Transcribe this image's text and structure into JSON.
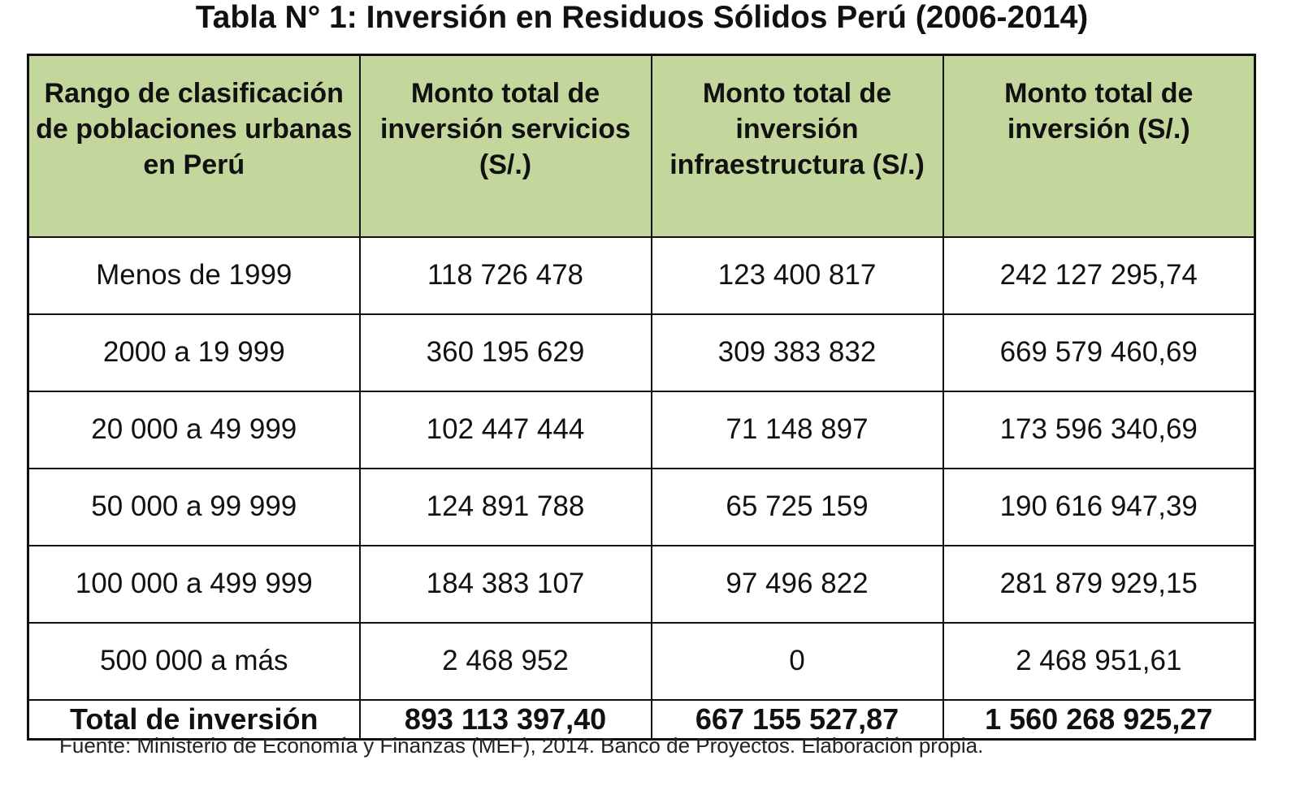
{
  "title": "Tabla N° 1: Inversión en Residuos Sólidos Perú (2006-2014)",
  "table": {
    "headers": [
      "Rango de clasificación de poblaciones urbanas en Perú",
      "Monto total de inversión servicios (S/.)",
      "Monto total de inversión infraestructura (S/.)",
      "Monto total de inversión (S/.)"
    ],
    "rows": [
      [
        "Menos de 1999",
        "118 726 478",
        "123 400 817",
        "242 127 295,74"
      ],
      [
        "2000 a 19 999",
        "360 195 629",
        "309 383 832",
        "669 579 460,69"
      ],
      [
        "20 000 a 49 999",
        "102 447 444",
        "71 148 897",
        "173 596 340,69"
      ],
      [
        "50 000 a 99 999",
        "124 891 788",
        "65 725 159",
        "190 616 947,39"
      ],
      [
        "100 000 a 499 999",
        "184 383 107",
        "97 496 822",
        "281 879 929,15"
      ],
      [
        "500 000 a más",
        "2 468 952",
        "0",
        "2 468 951,61"
      ]
    ],
    "total": [
      "Total de inversión",
      "893 113 397,40",
      "667 155 527,87",
      "1 560 268 925,27"
    ]
  },
  "source": "Fuente: Ministerio de Economía y Finanzas (MEF), 2014. Banco de Proyectos. Elaboración propia.",
  "colors": {
    "header_bg": "#c3d69b",
    "border": "#111111"
  }
}
